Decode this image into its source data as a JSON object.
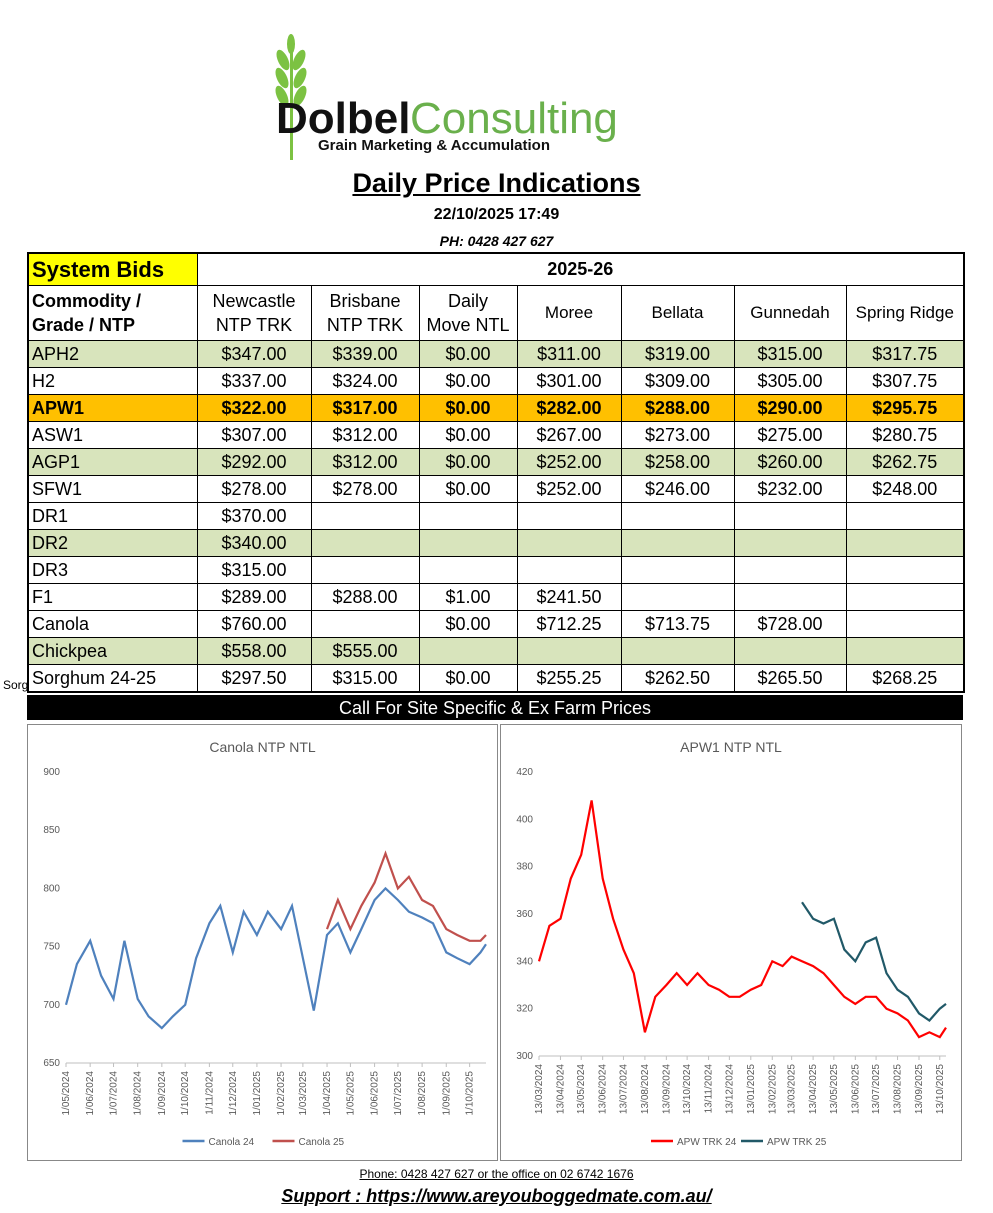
{
  "logo": {
    "brand_dark": "Dolbel",
    "brand_green": "Consulting",
    "tagline": "Grain Marketing & Accumulation"
  },
  "header": {
    "title": "Daily Price Indications",
    "timestamp": "22/10/2025 17:49",
    "phone": "PH: 0428 427 627"
  },
  "table": {
    "label": "System Bids",
    "season": "2025-26",
    "columns": [
      [
        "Commodity /",
        "Grade / NTP"
      ],
      [
        "Newcastle",
        "NTP TRK"
      ],
      [
        "Brisbane",
        "NTP TRK"
      ],
      [
        "Daily",
        "Move NTL"
      ],
      [
        "Moree"
      ],
      [
        "Bellata"
      ],
      [
        "Gunnedah"
      ],
      [
        "Spring Ridge"
      ]
    ],
    "rows": [
      {
        "cells": [
          "APH2",
          "$347.00",
          "$339.00",
          "$0.00",
          "$311.00",
          "$319.00",
          "$315.00",
          "$317.75"
        ],
        "fill": "#d8e4bc"
      },
      {
        "cells": [
          "H2",
          "$337.00",
          "$324.00",
          "$0.00",
          "$301.00",
          "$309.00",
          "$305.00",
          "$307.75"
        ]
      },
      {
        "cells": [
          "APW1",
          "$322.00",
          "$317.00",
          "$0.00",
          "$282.00",
          "$288.00",
          "$290.00",
          "$295.75"
        ],
        "fill": "#ffc000",
        "bold": true
      },
      {
        "cells": [
          "ASW1",
          "$307.00",
          "$312.00",
          "$0.00",
          "$267.00",
          "$273.00",
          "$275.00",
          "$280.75"
        ]
      },
      {
        "cells": [
          "AGP1",
          "$292.00",
          "$312.00",
          "$0.00",
          "$252.00",
          "$258.00",
          "$260.00",
          "$262.75"
        ],
        "fill": "#d8e4bc"
      },
      {
        "cells": [
          "SFW1",
          "$278.00",
          "$278.00",
          "$0.00",
          "$252.00",
          "$246.00",
          "$232.00",
          "$248.00"
        ]
      },
      {
        "cells": [
          "DR1",
          "$370.00",
          null,
          null,
          null,
          null,
          null,
          null
        ]
      },
      {
        "cells": [
          "DR2",
          "$340.00",
          null,
          null,
          null,
          null,
          null,
          null
        ],
        "fill": "#d8e4bc"
      },
      {
        "cells": [
          "DR3",
          "$315.00",
          null,
          null,
          null,
          null,
          null,
          null
        ]
      },
      {
        "cells": [
          "F1",
          "$289.00",
          "$288.00",
          "$1.00",
          "$241.50",
          null,
          null,
          null
        ]
      },
      {
        "cells": [
          "Canola",
          "$760.00",
          null,
          "$0.00",
          "$712.25",
          "$713.75",
          "$728.00",
          null
        ]
      },
      {
        "cells": [
          "Chickpea",
          "$558.00",
          "$555.00",
          null,
          null,
          null,
          null,
          null
        ],
        "fill": "#d8e4bc"
      },
      {
        "cells": [
          "Sorghum 24-25",
          "$297.50",
          "$315.00",
          "$0.00",
          "$255.25",
          "$262.50",
          "$265.50",
          "$268.25"
        ]
      }
    ]
  },
  "side_fragment": "Sorg",
  "banner": "Call For Site Specific & Ex Farm Prices",
  "chart_data": [
    {
      "type": "line",
      "title": "Canola NTP NTL",
      "x": [
        "1/05/2024",
        "15/05/2024",
        "1/06/2024",
        "15/06/2024",
        "1/07/2024",
        "15/07/2024",
        "1/08/2024",
        "15/08/2024",
        "1/09/2024",
        "15/09/2024",
        "1/10/2024",
        "15/10/2024",
        "1/11/2024",
        "15/11/2024",
        "1/12/2024",
        "15/12/2024",
        "1/01/2025",
        "15/01/2025",
        "1/02/2025",
        "15/02/2025",
        "1/03/2025",
        "15/03/2025",
        "1/04/2025",
        "15/04/2025",
        "1/05/2025",
        "15/05/2025",
        "1/06/2025",
        "15/06/2025",
        "1/07/2025",
        "15/07/2025",
        "1/08/2025",
        "15/08/2025",
        "1/09/2025",
        "15/09/2025",
        "1/10/2025",
        "15/10/2025",
        "22/10/2025"
      ],
      "xlim": [
        "1/05/2024",
        "22/10/2025"
      ],
      "xticks": [
        "1/05/2024",
        "1/06/2024",
        "1/07/2024",
        "1/08/2024",
        "1/09/2024",
        "1/10/2024",
        "1/11/2024",
        "1/12/2024",
        "1/01/2025",
        "1/02/2025",
        "1/03/2025",
        "1/04/2025",
        "1/05/2025",
        "1/06/2025",
        "1/07/2025",
        "1/08/2025",
        "1/09/2025",
        "1/10/2025"
      ],
      "ylim": [
        650,
        900
      ],
      "yticks": [
        650,
        700,
        750,
        800,
        850,
        900
      ],
      "grid": false,
      "series": [
        {
          "name": "Canola 24",
          "color": "#4f81bd",
          "values": [
            700,
            735,
            755,
            725,
            705,
            755,
            705,
            690,
            680,
            690,
            700,
            740,
            770,
            785,
            745,
            780,
            760,
            780,
            765,
            785,
            740,
            695,
            760,
            770,
            745,
            765,
            790,
            800,
            790,
            780,
            775,
            770,
            745,
            740,
            735,
            745,
            752
          ]
        },
        {
          "name": "Canola 25",
          "color": "#c0504d",
          "values": [
            null,
            null,
            null,
            null,
            null,
            null,
            null,
            null,
            null,
            null,
            null,
            null,
            null,
            null,
            null,
            null,
            null,
            null,
            null,
            null,
            null,
            null,
            765,
            790,
            765,
            785,
            805,
            830,
            800,
            810,
            790,
            785,
            765,
            760,
            755,
            755,
            760
          ]
        }
      ]
    },
    {
      "type": "line",
      "title": "APW1 NTP NTL",
      "x": [
        "13/03/2024",
        "28/03/2024",
        "13/04/2024",
        "28/04/2024",
        "13/05/2024",
        "28/05/2024",
        "13/06/2024",
        "28/06/2024",
        "13/07/2024",
        "28/07/2024",
        "13/08/2024",
        "28/08/2024",
        "13/09/2024",
        "28/09/2024",
        "13/10/2024",
        "28/10/2024",
        "13/11/2024",
        "28/11/2024",
        "13/12/2024",
        "28/12/2024",
        "13/01/2025",
        "28/01/2025",
        "13/02/2025",
        "28/02/2025",
        "13/03/2025",
        "28/03/2025",
        "13/04/2025",
        "28/04/2025",
        "13/05/2025",
        "28/05/2025",
        "13/06/2025",
        "28/06/2025",
        "13/07/2025",
        "28/07/2025",
        "13/08/2025",
        "28/08/2025",
        "13/09/2025",
        "28/09/2025",
        "13/10/2025",
        "22/10/2025"
      ],
      "xlim": [
        "13/03/2024",
        "22/10/2025"
      ],
      "xticks": [
        "13/03/2024",
        "13/04/2024",
        "13/05/2024",
        "13/06/2024",
        "13/07/2024",
        "13/08/2024",
        "13/09/2024",
        "13/10/2024",
        "13/11/2024",
        "13/12/2024",
        "13/01/2025",
        "13/02/2025",
        "13/03/2025",
        "13/04/2025",
        "13/05/2025",
        "13/06/2025",
        "13/07/2025",
        "13/08/2025",
        "13/09/2025",
        "13/10/2025"
      ],
      "ylim": [
        300,
        420
      ],
      "yticks": [
        300,
        320,
        340,
        360,
        380,
        400,
        420
      ],
      "grid": false,
      "series": [
        {
          "name": "APW TRK 24",
          "color": "#ff0000",
          "values": [
            340,
            355,
            358,
            375,
            385,
            408,
            375,
            358,
            345,
            335,
            310,
            325,
            330,
            335,
            330,
            335,
            330,
            328,
            325,
            325,
            328,
            330,
            340,
            338,
            342,
            340,
            338,
            335,
            330,
            325,
            322,
            325,
            325,
            320,
            318,
            315,
            308,
            310,
            308,
            312
          ]
        },
        {
          "name": "APW TRK 25",
          "color": "#215968",
          "values": [
            null,
            null,
            null,
            null,
            null,
            null,
            null,
            null,
            null,
            null,
            null,
            null,
            null,
            null,
            null,
            null,
            null,
            null,
            null,
            null,
            null,
            null,
            null,
            null,
            null,
            365,
            358,
            356,
            358,
            345,
            340,
            348,
            350,
            335,
            328,
            325,
            318,
            315,
            320,
            322
          ]
        }
      ]
    }
  ],
  "footer": {
    "contact": "Phone: 0428 427 627 or the office on 02 6742 1676",
    "support": "Support : https://www.areyouboggedmate.com.au/"
  }
}
